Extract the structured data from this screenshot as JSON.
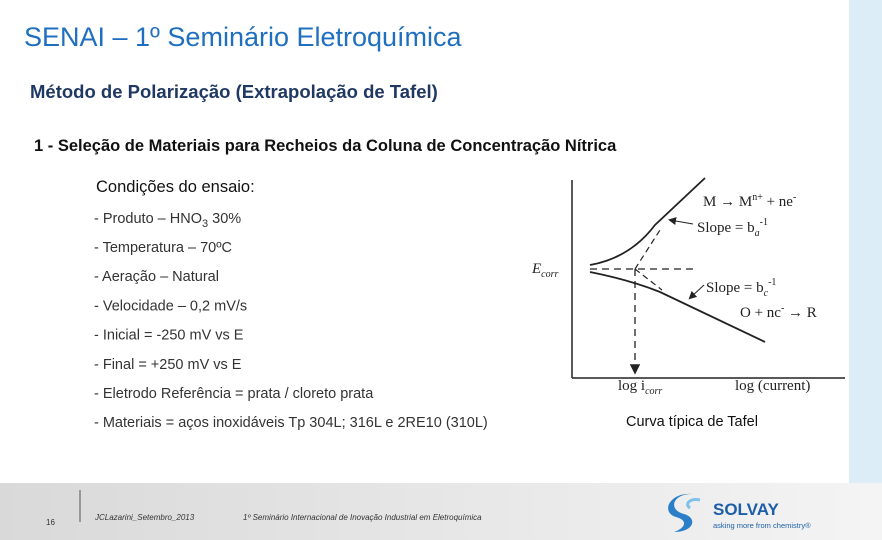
{
  "header": {
    "title": "SENAI – 1º Seminário Eletroquímica",
    "subtitle": "Método de Polarização (Extrapolação de Tafel)"
  },
  "section": {
    "heading": "1 - Seleção de Materiais para Recheios da Coluna de Concentração Nítrica",
    "conditions_title": "Condições do ensaio:",
    "product": [
      "- Produto – HNO",
      "3",
      " 30%"
    ],
    "items": [
      "- Temperatura – 70ºC",
      "- Aeração – Natural",
      "- Velocidade – 0,2 mV/s",
      "- Inicial = -250 mV vs E",
      "- Final = +250 mV vs E",
      "- Eletrodo Referência = prata / cloreto prata",
      "- Materiais = aços inoxidáveis Tp 304L; 316L e 2RE10 (310L)"
    ]
  },
  "figure": {
    "anodic_reaction": [
      "M → M",
      "n+",
      " + ne",
      "-"
    ],
    "anodic_slope": [
      "Slope = b",
      "a",
      "-1"
    ],
    "ecorr": [
      "E",
      "corr"
    ],
    "cathodic_slope": [
      "Slope = b",
      "c",
      "-1"
    ],
    "cathodic_reaction": [
      "O + nc",
      "-",
      " → R"
    ],
    "icorr": [
      "log i",
      "corr"
    ],
    "x_label": "log (current)",
    "caption": "Curva típica de Tafel"
  },
  "footer": {
    "page": 16,
    "author": "JCLazarini_Setembro_2013",
    "event": "1º Seminário Internacional de Inovação Industrial em Eletroquímica",
    "brand": "SOLVAY",
    "tagline": "asking more from chemistry®"
  }
}
